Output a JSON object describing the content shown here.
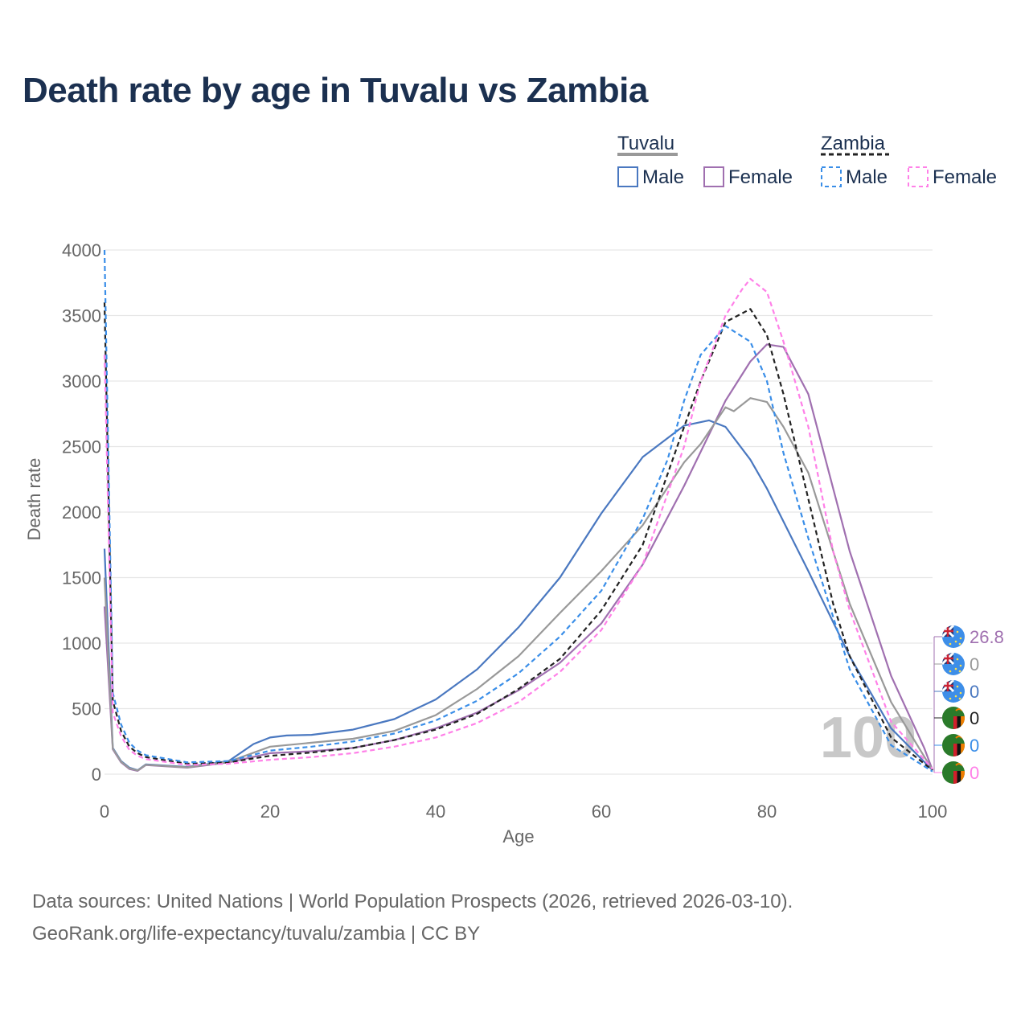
{
  "title": "Death rate by age in Tuvalu vs Zambia",
  "legend": {
    "group1": "Tuvalu",
    "group2": "Zambia",
    "male": "Male",
    "female": "Female"
  },
  "sources": {
    "line1": "Data sources: United Nations | World Population Prospects (2026, retrieved 2026-03-10).",
    "line2": "GeoRank.org/life-expectancy/tuvalu/zambia | CC BY"
  },
  "chart_data": {
    "type": "line",
    "title": "Death rate by age in Tuvalu vs Zambia",
    "xlabel": "Age",
    "ylabel": "Death rate",
    "xlim": [
      0,
      100
    ],
    "ylim": [
      0,
      4000
    ],
    "xticks": [
      "0",
      "20",
      "40",
      "60",
      "80",
      "100"
    ],
    "yticks": [
      "0",
      "500",
      "1000",
      "1500",
      "2000",
      "2500",
      "3000",
      "3500",
      "4000"
    ],
    "grid": true,
    "legend_position": "top-right",
    "age_marker": "100",
    "colors": {
      "tuvalu_total": "#999999",
      "tuvalu_male": "#4a78c0",
      "tuvalu_female": "#a070b0",
      "zambia_total": "#222222",
      "zambia_male": "#3a8ee8",
      "zambia_female": "#ff80e8"
    },
    "series": [
      {
        "name": "Tuvalu Male",
        "country": "Tuvalu",
        "sex": "male",
        "color": "#4a78c0",
        "dash": false,
        "x": [
          0,
          1,
          2,
          3,
          4,
          5,
          10,
          15,
          18,
          20,
          22,
          25,
          30,
          35,
          40,
          45,
          50,
          55,
          60,
          65,
          70,
          73,
          75,
          78,
          80,
          85,
          90,
          95,
          100
        ],
        "y": [
          1720,
          200,
          100,
          50,
          30,
          75,
          55,
          100,
          230,
          280,
          295,
          300,
          340,
          420,
          570,
          800,
          1120,
          1500,
          1990,
          2420,
          2660,
          2700,
          2650,
          2400,
          2180,
          1550,
          900,
          350,
          30
        ]
      },
      {
        "name": "Tuvalu Female",
        "country": "Tuvalu",
        "sex": "female",
        "color": "#a070b0",
        "dash": false,
        "x": [
          0,
          1,
          2,
          3,
          4,
          5,
          10,
          15,
          20,
          25,
          30,
          35,
          40,
          45,
          50,
          55,
          60,
          65,
          70,
          75,
          78,
          80,
          82,
          85,
          90,
          95,
          99,
          100
        ],
        "y": [
          1280,
          190,
          90,
          40,
          25,
          70,
          50,
          90,
          160,
          175,
          200,
          260,
          350,
          470,
          640,
          850,
          1150,
          1600,
          2200,
          2850,
          3150,
          3280,
          3260,
          2900,
          1700,
          750,
          200,
          30
        ]
      },
      {
        "name": "Tuvalu",
        "country": "Tuvalu",
        "sex": "total",
        "color": "#999999",
        "dash": false,
        "x": [
          0,
          1,
          2,
          3,
          4,
          5,
          10,
          15,
          20,
          25,
          30,
          35,
          40,
          45,
          50,
          55,
          60,
          65,
          70,
          72,
          75,
          76,
          78,
          80,
          82,
          85,
          90,
          95,
          100
        ],
        "y": [
          1500,
          195,
          95,
          45,
          28,
          72,
          52,
          95,
          210,
          240,
          270,
          330,
          450,
          650,
          900,
          1230,
          1550,
          1900,
          2380,
          2520,
          2800,
          2770,
          2870,
          2840,
          2650,
          2300,
          1300,
          550,
          30
        ]
      },
      {
        "name": "Zambia",
        "country": "Zambia",
        "sex": "total",
        "color": "#222222",
        "dash": true,
        "x": [
          0,
          1,
          2,
          3,
          4,
          5,
          10,
          15,
          20,
          25,
          30,
          35,
          40,
          45,
          50,
          55,
          60,
          65,
          70,
          72,
          75,
          78,
          80,
          82,
          85,
          88,
          90,
          95,
          100
        ],
        "y": [
          3600,
          560,
          330,
          210,
          160,
          130,
          80,
          90,
          140,
          165,
          200,
          260,
          340,
          460,
          650,
          880,
          1250,
          1750,
          2650,
          3000,
          3450,
          3550,
          3350,
          2900,
          2100,
          1300,
          900,
          280,
          30
        ]
      },
      {
        "name": "Zambia Male",
        "country": "Zambia",
        "sex": "male",
        "color": "#3a8ee8",
        "dash": true,
        "x": [
          0,
          1,
          2,
          3,
          4,
          5,
          10,
          15,
          20,
          25,
          30,
          35,
          40,
          45,
          50,
          55,
          60,
          65,
          68,
          70,
          72,
          75,
          78,
          80,
          82,
          85,
          90,
          95,
          100
        ],
        "y": [
          4000,
          620,
          380,
          240,
          180,
          145,
          90,
          100,
          180,
          210,
          250,
          310,
          410,
          560,
          770,
          1050,
          1400,
          1950,
          2400,
          2850,
          3200,
          3420,
          3300,
          3000,
          2450,
          1800,
          800,
          220,
          20
        ]
      },
      {
        "name": "Zambia Female",
        "country": "Zambia",
        "sex": "female",
        "color": "#ff80e8",
        "dash": true,
        "x": [
          0,
          1,
          2,
          3,
          4,
          5,
          10,
          15,
          20,
          25,
          30,
          35,
          40,
          45,
          50,
          55,
          60,
          65,
          70,
          72,
          75,
          77,
          78,
          80,
          82,
          85,
          88,
          90,
          95,
          100
        ],
        "y": [
          3200,
          470,
          290,
          185,
          140,
          115,
          70,
          80,
          110,
          130,
          160,
          210,
          280,
          390,
          550,
          780,
          1100,
          1600,
          2500,
          3000,
          3500,
          3700,
          3780,
          3680,
          3300,
          2650,
          1700,
          1250,
          400,
          40
        ]
      }
    ],
    "end_labels": [
      {
        "flag": "tuvalu",
        "value": "26.8",
        "color": "#a070b0"
      },
      {
        "flag": "tuvalu",
        "value": "0",
        "color": "#999999"
      },
      {
        "flag": "tuvalu",
        "value": "0",
        "color": "#4a78c0"
      },
      {
        "flag": "zambia",
        "value": "0",
        "color": "#222222"
      },
      {
        "flag": "zambia",
        "value": "0",
        "color": "#3a8ee8"
      },
      {
        "flag": "zambia",
        "value": "0",
        "color": "#ff80e8"
      }
    ]
  }
}
